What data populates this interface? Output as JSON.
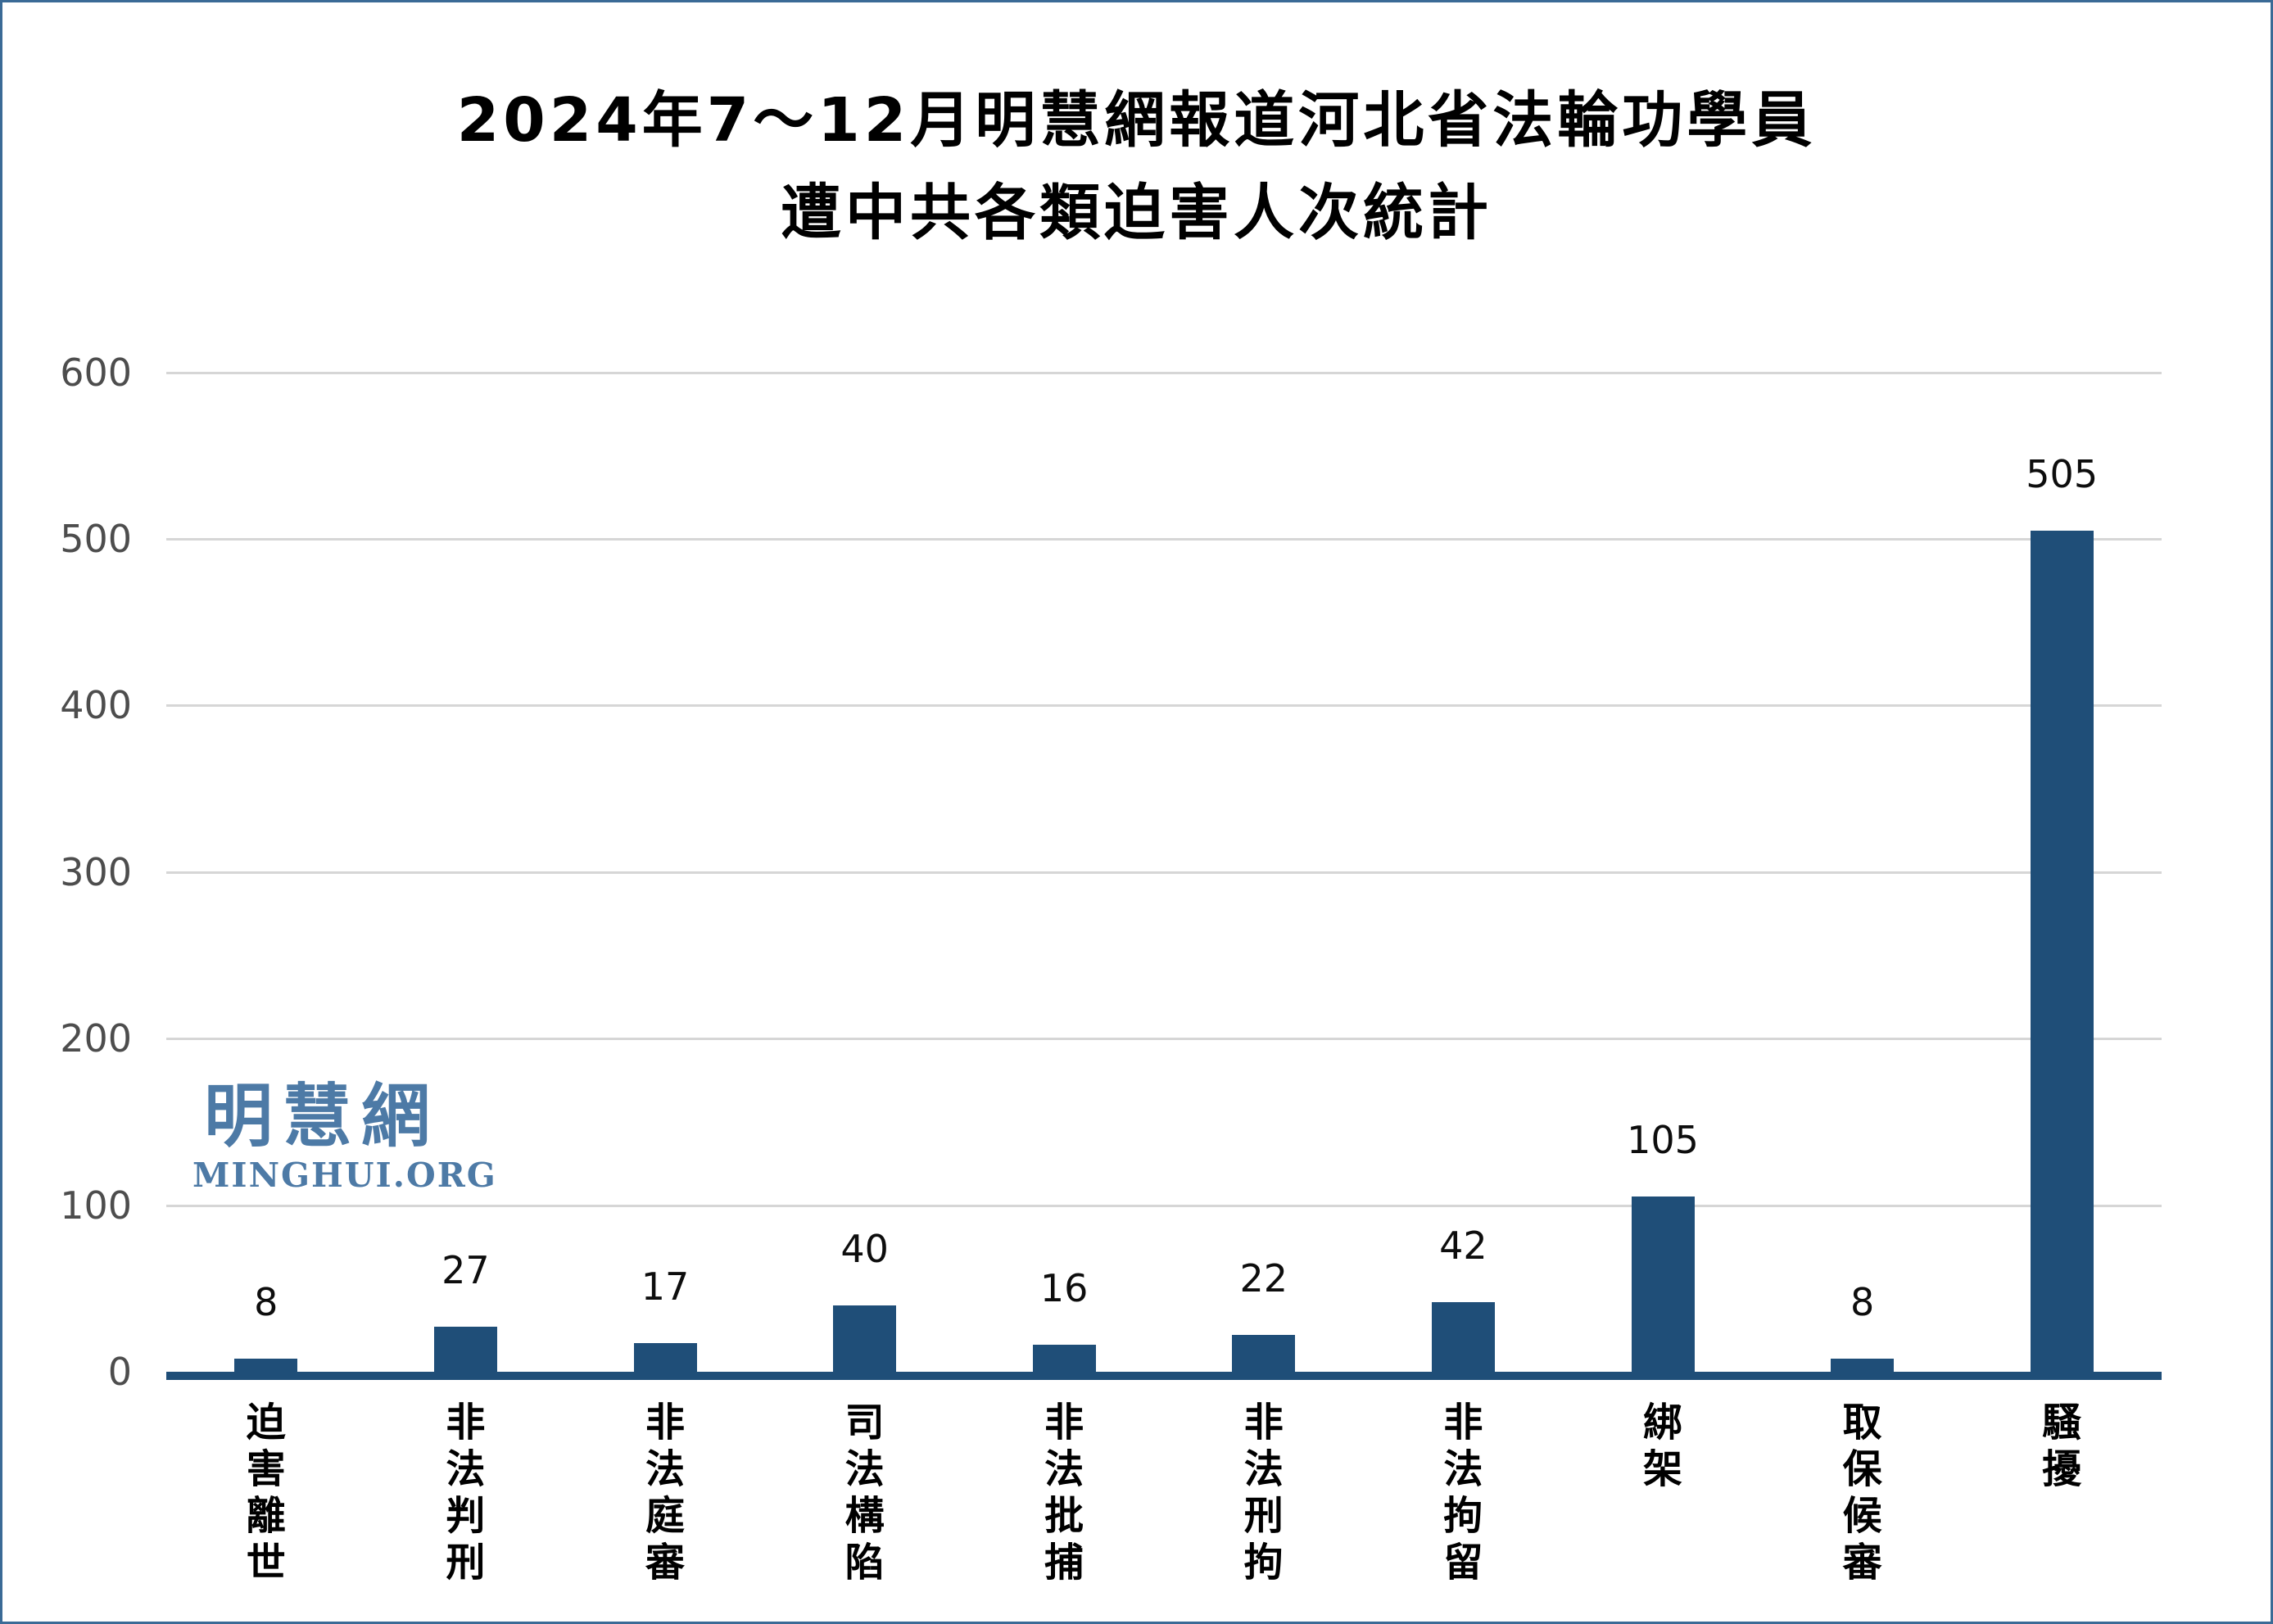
{
  "title": {
    "line1": "2024年7～12月明慧網報道河北省法輪功學員",
    "line2": "遭中共各類迫害人次統計"
  },
  "watermark": {
    "chinese": "明慧網",
    "latin": "MINGHUI.ORG",
    "color": "#4d7aa6"
  },
  "colors": {
    "bar": "#1f4e78",
    "axis_line": "#1f4e78",
    "gridline": "#d6d6d6",
    "tick_text": "#4d4d4d",
    "title_text": "#000000",
    "frame_border": "#3a6a96",
    "background": "#ffffff"
  },
  "chart_data": {
    "type": "bar",
    "title": "2024年7～12月明慧網報道河北省法輪功學員遭中共各類迫害人次統計",
    "categories": [
      "迫害離世",
      "非法判刑",
      "非法庭審",
      "司法構陷",
      "非法批捕",
      "非法刑拘",
      "非法拘留",
      "綁架",
      "取保候審",
      "騷擾"
    ],
    "values": [
      8,
      27,
      17,
      40,
      16,
      22,
      42,
      105,
      8,
      505
    ],
    "value_labels_shown": true,
    "xlabel": "",
    "ylabel": "",
    "ylim": [
      0,
      600
    ],
    "yticks": [
      0,
      100,
      200,
      300,
      400,
      500,
      600
    ],
    "grid": "horizontal-only",
    "legend": "none",
    "bar_color": "#1f4e78",
    "category_label_orientation": "vertical"
  }
}
